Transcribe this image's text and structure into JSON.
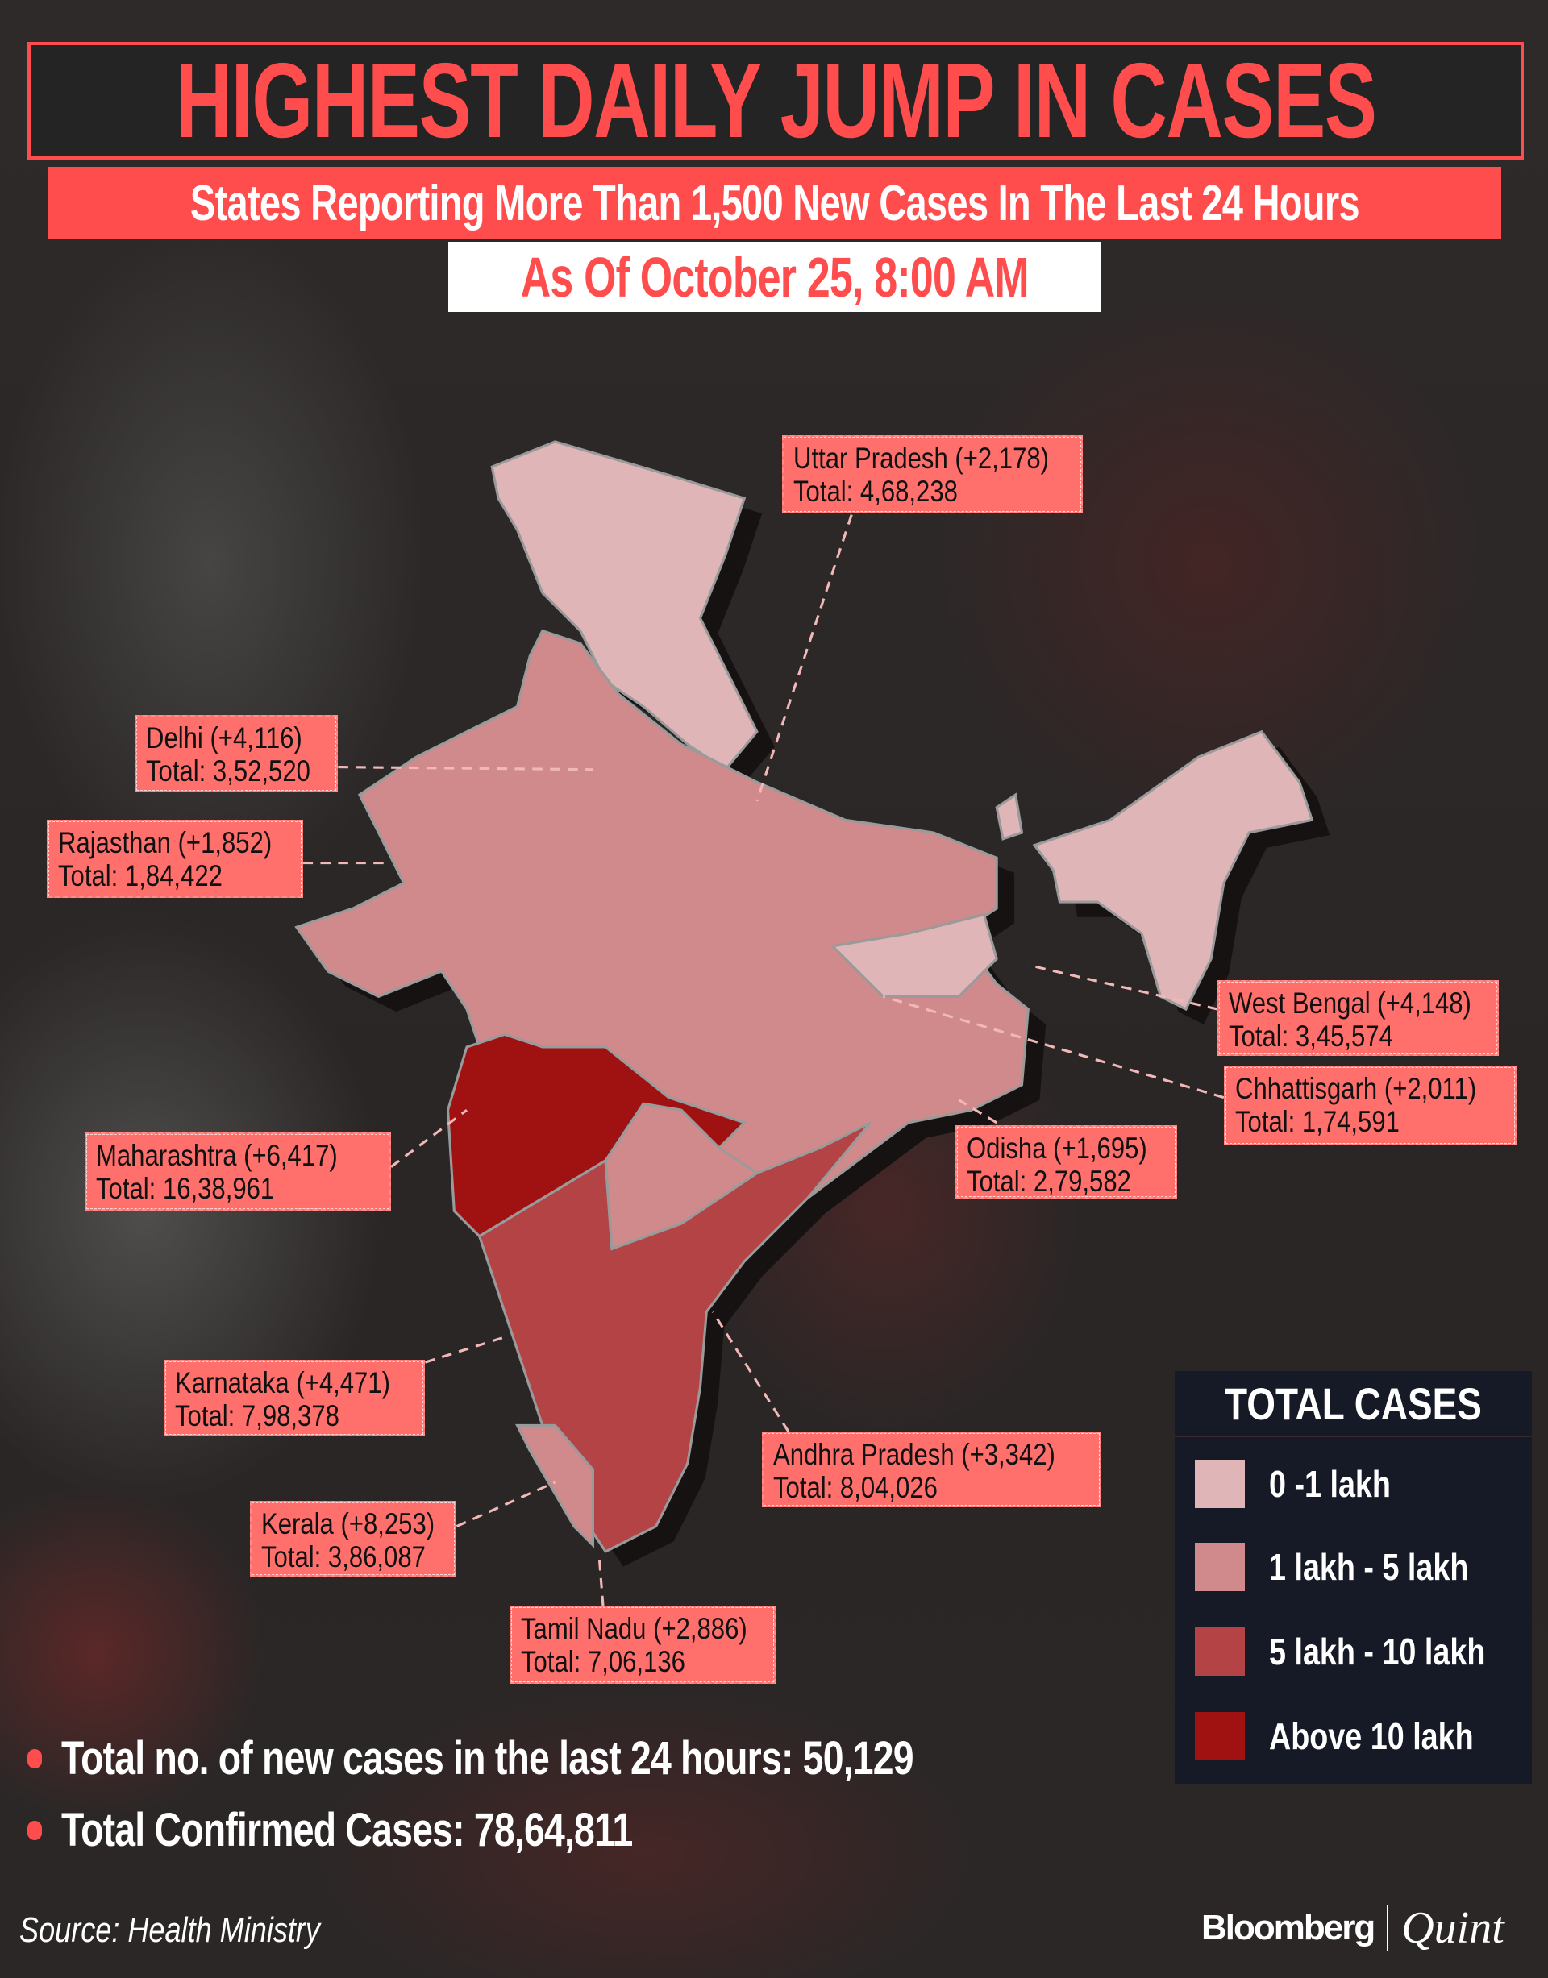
{
  "header": {
    "title": "HIGHEST DAILY JUMP IN CASES",
    "subtitle": "States Reporting More Than 1,500 New Cases In The Last 24 Hours",
    "date": "As Of October 25, 8:00 AM"
  },
  "states": [
    {
      "name_line": "Uttar Pradesh (+2,178)",
      "total_line": "Total: 4,68,238",
      "category": "1 lakh - 5 lakh"
    },
    {
      "name_line": "Delhi (+4,116)",
      "total_line": "Total: 3,52,520",
      "category": "1 lakh - 5 lakh"
    },
    {
      "name_line": "Rajasthan (+1,852)",
      "total_line": "Total: 1,84,422",
      "category": "1 lakh - 5 lakh"
    },
    {
      "name_line": "West Bengal (+4,148)",
      "total_line": "Total: 3,45,574",
      "category": "1 lakh - 5 lakh"
    },
    {
      "name_line": "Chhattisgarh (+2,011)",
      "total_line": "Total: 1,74,591",
      "category": "1 lakh - 5 lakh"
    },
    {
      "name_line": "Odisha (+1,695)",
      "total_line": "Total: 2,79,582",
      "category": "1 lakh - 5 lakh"
    },
    {
      "name_line": "Maharashtra (+6,417)",
      "total_line": "Total: 16,38,961",
      "category": "Above 10 lakh"
    },
    {
      "name_line": "Karnataka (+4,471)",
      "total_line": "Total: 7,98,378",
      "category": "5 lakh - 10 lakh"
    },
    {
      "name_line": "Andhra Pradesh (+3,342)",
      "total_line": "Total: 8,04,026",
      "category": "5 lakh - 10 lakh"
    },
    {
      "name_line": "Kerala (+8,253)",
      "total_line": "Total: 3,86,087",
      "category": "1 lakh - 5 lakh"
    },
    {
      "name_line": "Tamil Nadu (+2,886)",
      "total_line": "Total: 7,06,136",
      "category": "5 lakh - 10 lakh"
    }
  ],
  "legend": {
    "title": "TOTAL CASES",
    "items": [
      {
        "label": "0 -1 lakh",
        "color": "#e0b5b8"
      },
      {
        "label": "1 lakh - 5 lakh",
        "color": "#d08a8c"
      },
      {
        "label": "5 lakh - 10 lakh",
        "color": "#b34345"
      },
      {
        "label": "Above 10 lakh",
        "color": "#a01212"
      }
    ]
  },
  "summary": [
    "Total no. of new cases in the last 24 hours: 50,129",
    "Total Confirmed Cases: 78,64,811"
  ],
  "source": "Source: Health Ministry",
  "logo": {
    "left": "Bloomberg",
    "right": "Quint"
  },
  "colors": {
    "accent": "#ff4d4d",
    "label_bg": "#ff6f6c"
  }
}
